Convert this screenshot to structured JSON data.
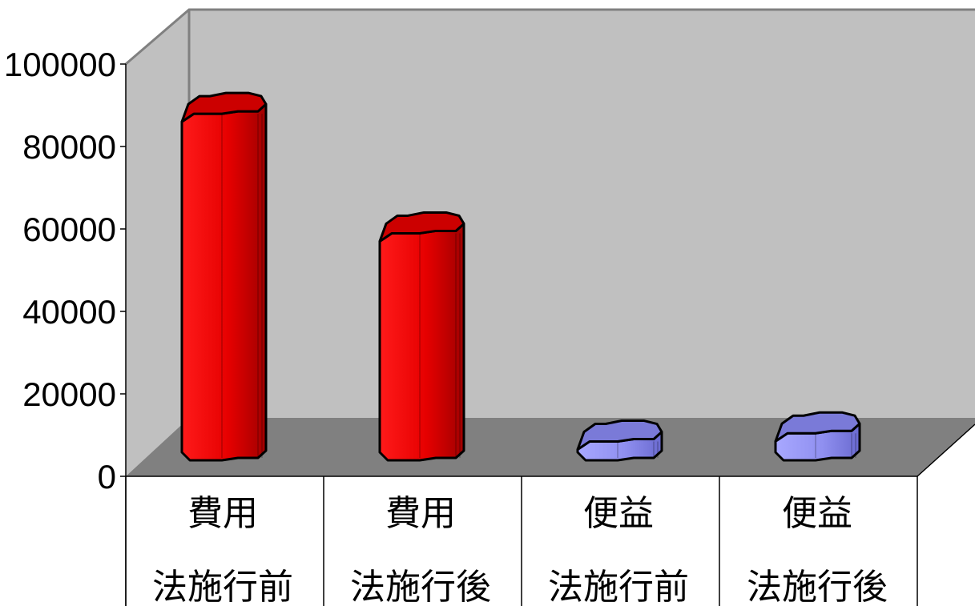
{
  "chart_data": {
    "type": "bar",
    "title": "",
    "xlabel": "",
    "ylabel": "",
    "ylim": [
      0,
      100000
    ],
    "yticks": [
      "0",
      "20000",
      "40000",
      "60000",
      "80000",
      "100000"
    ],
    "categories": [
      {
        "line1": "費用",
        "line2": "法施行前"
      },
      {
        "line1": "費用",
        "line2": "法施行後"
      },
      {
        "line1": "便益",
        "line2": "法施行前"
      },
      {
        "line1": "便益",
        "line2": "法施行後"
      }
    ],
    "values": [
      86000,
      57000,
      6500,
      8500
    ],
    "colors": {
      "費用": "#ff0000",
      "便益": "#9999ff",
      "back_wall": "#c0c0c0",
      "floor": "#808080"
    },
    "style": "3d-cylinder",
    "grid": false,
    "legend": "none"
  }
}
